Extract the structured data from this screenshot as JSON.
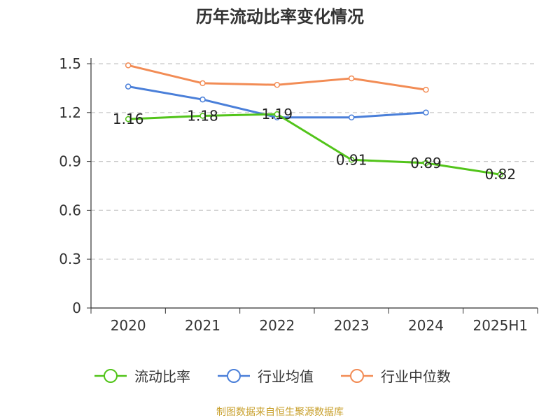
{
  "chart_data": {
    "type": "line",
    "title": "历年流动比率变化情况",
    "categories": [
      "2020",
      "2021",
      "2022",
      "2023",
      "2024",
      "2025H1"
    ],
    "ylim": [
      0,
      1.5
    ],
    "yticks": [
      "0",
      "0.3",
      "0.6",
      "0.9",
      "1.2",
      "1.5"
    ],
    "grid": true,
    "legend_position": "bottom",
    "series": [
      {
        "name": "流动比率",
        "color": "#52c41a",
        "values": [
          1.16,
          1.18,
          1.19,
          0.91,
          0.89,
          0.82
        ],
        "labels": [
          "1.16",
          "1.18",
          "1.19",
          "0.91",
          "0.89",
          "0.82"
        ]
      },
      {
        "name": "行业均值",
        "color": "#4a7fd9",
        "values": [
          1.36,
          1.28,
          1.17,
          1.17,
          1.2,
          null
        ]
      },
      {
        "name": "行业中位数",
        "color": "#f28c55",
        "values": [
          1.49,
          1.38,
          1.37,
          1.41,
          1.34,
          null
        ]
      }
    ]
  },
  "source_text": "制图数据来自恒生聚源数据库"
}
